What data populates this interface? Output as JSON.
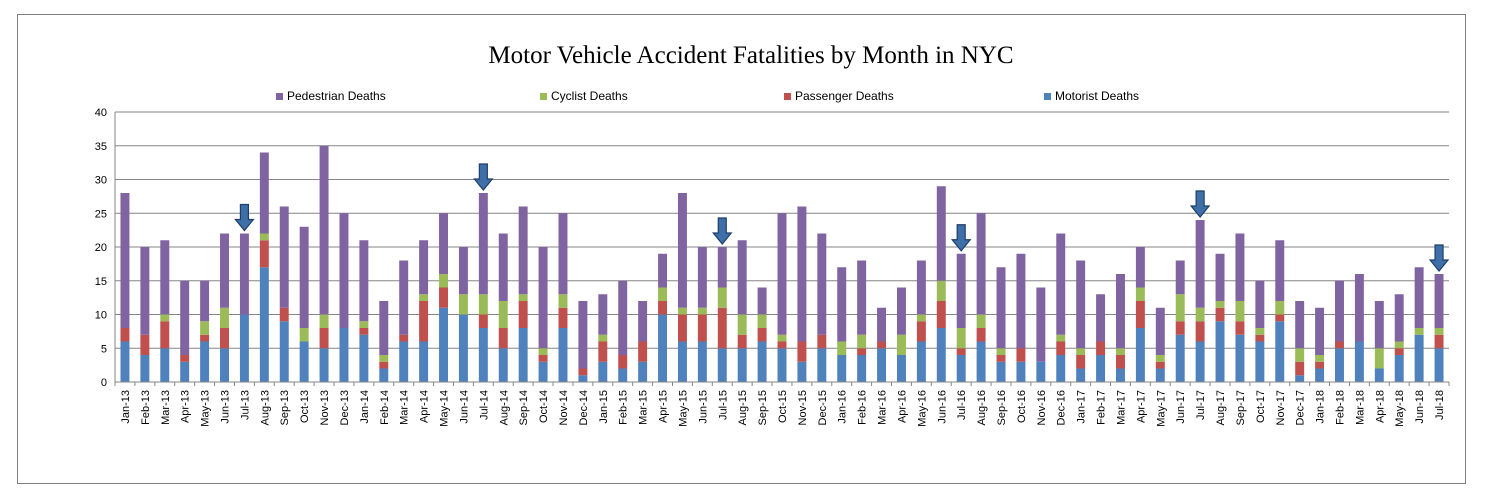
{
  "chart_data": {
    "type": "bar",
    "stacked": true,
    "title": "Motor Vehicle Accident Fatalities by Month in NYC",
    "legend_position": "top",
    "grid": true,
    "ylim": [
      0,
      40
    ],
    "yticks": [
      "0",
      "5",
      "10",
      "15",
      "20",
      "25",
      "30",
      "35",
      "40"
    ],
    "colors": {
      "Motorist Deaths": "#4f81bd",
      "Passenger Deaths": "#c0504d",
      "Cyclist Deaths": "#9bbb59",
      "Pedestrian Deaths": "#8064a2"
    },
    "legend": [
      "Pedestrian Deaths",
      "Cyclist Deaths",
      "Passenger Deaths",
      "Motorist Deaths"
    ],
    "categories": [
      "Jan-13",
      "Feb-13",
      "Mar-13",
      "Apr-13",
      "May-13",
      "Jun-13",
      "Jul-13",
      "Aug-13",
      "Sep-13",
      "Oct-13",
      "Nov-13",
      "Dec-13",
      "Jan-14",
      "Feb-14",
      "Mar-14",
      "Apr-14",
      "May-14",
      "Jun-14",
      "Jul-14",
      "Aug-14",
      "Sep-14",
      "Oct-14",
      "Nov-14",
      "Dec-14",
      "Jan-15",
      "Feb-15",
      "Mar-15",
      "Apr-15",
      "May-15",
      "Jun-15",
      "Jul-15",
      "Aug-15",
      "Sep-15",
      "Oct-15",
      "Nov-15",
      "Dec-15",
      "Jan-16",
      "Feb-16",
      "Mar-16",
      "Apr-16",
      "May-16",
      "Jun-16",
      "Jul-16",
      "Aug-16",
      "Sep-16",
      "Oct-16",
      "Nov-16",
      "Dec-16",
      "Jan-17",
      "Feb-17",
      "Mar-17",
      "Apr-17",
      "May-17",
      "Jun-17",
      "Jul-17",
      "Aug-17",
      "Sep-17",
      "Oct-17",
      "Nov-17",
      "Dec-17",
      "Jan-18",
      "Feb-18",
      "Mar-18",
      "Apr-18",
      "May-18",
      "Jun-18",
      "Jul-18"
    ],
    "series": [
      {
        "name": "Motorist Deaths",
        "values": [
          6,
          4,
          5,
          3,
          6,
          5,
          10,
          17,
          9,
          6,
          5,
          8,
          7,
          2,
          6,
          6,
          11,
          10,
          8,
          5,
          8,
          3,
          8,
          1,
          3,
          2,
          3,
          10,
          6,
          6,
          5,
          5,
          6,
          5,
          3,
          5,
          4,
          4,
          5,
          4,
          6,
          8,
          4,
          6,
          3,
          3,
          3,
          4,
          2,
          4,
          2,
          8,
          2,
          7,
          6,
          9,
          7,
          6,
          9,
          1,
          2,
          5,
          6,
          2,
          4,
          7,
          5
        ]
      },
      {
        "name": "Passenger Deaths",
        "values": [
          2,
          3,
          4,
          1,
          1,
          3,
          0,
          4,
          2,
          0,
          3,
          0,
          1,
          1,
          1,
          6,
          3,
          0,
          2,
          3,
          4,
          1,
          3,
          1,
          3,
          2,
          3,
          2,
          4,
          4,
          6,
          2,
          2,
          1,
          3,
          2,
          0,
          1,
          1,
          0,
          3,
          4,
          1,
          2,
          1,
          2,
          0,
          2,
          2,
          2,
          2,
          4,
          1,
          2,
          3,
          2,
          2,
          1,
          1,
          2,
          1,
          1,
          0,
          0,
          1,
          0,
          2
        ]
      },
      {
        "name": "Cyclist Deaths",
        "values": [
          0,
          0,
          1,
          0,
          2,
          3,
          0,
          1,
          0,
          2,
          2,
          0,
          1,
          1,
          0,
          1,
          2,
          3,
          3,
          4,
          1,
          1,
          2,
          0,
          1,
          0,
          0,
          2,
          1,
          1,
          3,
          3,
          2,
          1,
          0,
          0,
          2,
          2,
          0,
          3,
          1,
          3,
          3,
          2,
          1,
          0,
          0,
          1,
          1,
          0,
          1,
          2,
          1,
          4,
          2,
          1,
          3,
          1,
          2,
          2,
          1,
          0,
          0,
          3,
          1,
          1,
          1
        ]
      },
      {
        "name": "Pedestrian Deaths",
        "values": [
          20,
          13,
          11,
          11,
          6,
          11,
          12,
          12,
          15,
          15,
          25,
          17,
          12,
          8,
          11,
          8,
          9,
          7,
          15,
          10,
          13,
          15,
          12,
          10,
          6,
          11,
          6,
          5,
          17,
          9,
          6,
          11,
          4,
          18,
          20,
          15,
          11,
          11,
          5,
          7,
          8,
          14,
          11,
          15,
          12,
          14,
          11,
          15,
          13,
          7,
          11,
          6,
          7,
          5,
          13,
          7,
          10,
          7,
          9,
          7,
          7,
          9,
          10,
          7,
          7,
          9,
          8
        ]
      }
    ],
    "annotations": {
      "arrow_marker": "down-arrow",
      "arrow_months": [
        "Jul-13",
        "Jul-14",
        "Jul-15",
        "Jul-16",
        "Jul-17",
        "Jul-18"
      ]
    }
  }
}
